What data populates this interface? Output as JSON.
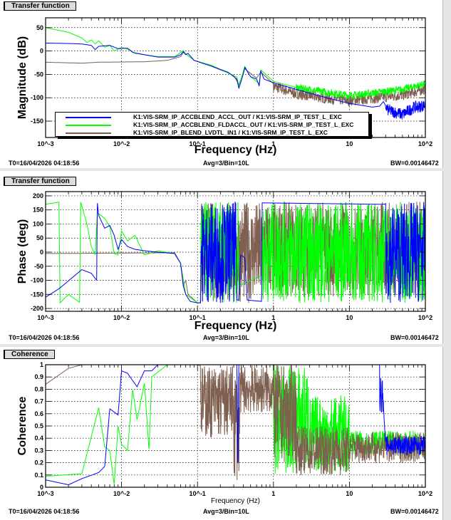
{
  "footer": {
    "t0": "T0=16/04/2026 04:18:56",
    "avg": "Avg=3/Bin=10L",
    "bw": "BW=0.00146472"
  },
  "legend": [
    {
      "label": "K1:VIS-SRM_IP_ACCBLEND_ACCL_OUT / K1:VIS-SRM_IP_TEST_L_EXC",
      "color": "#0000ff"
    },
    {
      "label": "K1:VIS-SRM_IP_ACCBLEND_FLDACCL_OUT / K1:VIS-SRM_IP_TEST_L_EXC",
      "color": "#00ff00"
    },
    {
      "label": "K1:VIS-SRM_IP_BLEND_LVDTL_IN1 / K1:VIS-SRM_IP_TEST_L_EXC",
      "color": "#7f5f4f"
    }
  ],
  "chart_data": [
    {
      "type": "line",
      "tab": "Transfer function",
      "title": "Transfer function",
      "xlabel": "Frequency (Hz)",
      "ylabel": "Magnitude (dB)",
      "xscale": "log",
      "xlim": [
        0.001,
        100
      ],
      "ylim": [
        -185,
        71
      ],
      "x_ticks": [
        "10^-3",
        "10^-2",
        "10^-1",
        "1",
        "10",
        "10^2"
      ],
      "y_ticks": [
        50,
        0,
        -50,
        -100,
        -150
      ],
      "grid": true,
      "legend": "bottom",
      "series": [
        {
          "name": "K1:VIS-SRM_IP_BLEND_LVDTL_IN1 / K1:VIS-SRM_IP_TEST_L_EXC",
          "color": "#7f5f4f",
          "points": [
            [
              0.001,
              -24
            ],
            [
              0.003,
              -26
            ],
            [
              0.005,
              -24
            ],
            [
              0.02,
              -23
            ],
            [
              0.04,
              -20
            ],
            [
              0.06,
              -12
            ],
            [
              0.065,
              -3
            ],
            [
              0.07,
              -6
            ],
            [
              0.09,
              -20
            ],
            [
              0.15,
              -32
            ],
            [
              0.3,
              -52
            ],
            [
              0.35,
              -72
            ],
            [
              0.42,
              -38
            ],
            [
              0.6,
              -58
            ],
            [
              0.68,
              -45
            ],
            [
              1,
              -70
            ],
            [
              2,
              -85
            ],
            [
              5,
              -95
            ],
            [
              10,
              -100
            ],
            [
              20,
              -95
            ],
            [
              50,
              -88
            ],
            [
              100,
              -75
            ]
          ],
          "bands": [
            [
              1,
              100,
              -18,
              6
            ]
          ]
        },
        {
          "name": "K1:VIS-SRM_IP_ACCBLEND_FLDACCL_OUT / K1:VIS-SRM_IP_TEST_L_EXC",
          "color": "#00ff00",
          "points": [
            [
              0.001,
              50
            ],
            [
              0.002,
              40
            ],
            [
              0.003,
              28
            ],
            [
              0.0035,
              18
            ],
            [
              0.004,
              24
            ],
            [
              0.0045,
              15
            ],
            [
              0.005,
              22
            ],
            [
              0.006,
              8
            ],
            [
              0.007,
              12
            ],
            [
              0.008,
              0
            ],
            [
              0.01,
              8
            ],
            [
              0.013,
              2
            ],
            [
              0.015,
              -5
            ],
            [
              0.02,
              -8
            ],
            [
              0.03,
              -12
            ],
            [
              0.05,
              -12
            ],
            [
              0.065,
              1
            ],
            [
              0.07,
              -6
            ],
            [
              0.09,
              -20
            ],
            [
              0.15,
              -30
            ],
            [
              0.33,
              -56
            ],
            [
              0.35,
              -75
            ],
            [
              0.42,
              -33
            ],
            [
              0.5,
              -55
            ],
            [
              0.65,
              -70
            ],
            [
              0.68,
              -40
            ],
            [
              1,
              -65
            ],
            [
              2,
              -78
            ],
            [
              5,
              -88
            ],
            [
              10,
              -95
            ],
            [
              20,
              -90
            ],
            [
              50,
              -82
            ],
            [
              100,
              -70
            ]
          ],
          "bands": [
            [
              2,
              100,
              -8,
              8
            ]
          ]
        },
        {
          "name": "K1:VIS-SRM_IP_ACCBLEND_ACCL_OUT / K1:VIS-SRM_IP_TEST_L_EXC",
          "color": "#0000ff",
          "points": [
            [
              0.001,
              17
            ],
            [
              0.002,
              16
            ],
            [
              0.003,
              15
            ],
            [
              0.004,
              12
            ],
            [
              0.0045,
              3
            ],
            [
              0.005,
              10
            ],
            [
              0.007,
              12
            ],
            [
              0.009,
              5
            ],
            [
              0.012,
              6
            ],
            [
              0.014,
              -3
            ],
            [
              0.02,
              -8
            ],
            [
              0.03,
              -13
            ],
            [
              0.05,
              -13
            ],
            [
              0.06,
              -8
            ],
            [
              0.065,
              -1
            ],
            [
              0.07,
              -8
            ],
            [
              0.075,
              -5
            ],
            [
              0.09,
              -20
            ],
            [
              0.15,
              -32
            ],
            [
              0.25,
              -45
            ],
            [
              0.33,
              -60
            ],
            [
              0.35,
              -80
            ],
            [
              0.4,
              -50
            ],
            [
              0.42,
              -35
            ],
            [
              0.5,
              -55
            ],
            [
              0.6,
              -60
            ],
            [
              0.65,
              -75
            ],
            [
              0.68,
              -42
            ],
            [
              0.75,
              -60
            ],
            [
              1,
              -68
            ],
            [
              2,
              -82
            ],
            [
              5,
              -100
            ],
            [
              10,
              -112
            ],
            [
              20,
              -120
            ],
            [
              25,
              -118
            ],
            [
              28,
              -108
            ],
            [
              32,
              -125
            ],
            [
              50,
              -135
            ],
            [
              70,
              -120
            ],
            [
              100,
              -115
            ]
          ],
          "bands": [
            [
              30,
              100,
              -14,
              12
            ]
          ]
        }
      ]
    },
    {
      "type": "line",
      "tab": "Transfer function",
      "title": "Transfer function",
      "xlabel": "Frequency (Hz)",
      "ylabel": "Phase (deg)",
      "xscale": "log",
      "xlim": [
        0.001,
        100
      ],
      "ylim": [
        -210,
        215
      ],
      "x_ticks": [
        "10^-3",
        "10^-2",
        "10^-1",
        "1",
        "10",
        "10^2"
      ],
      "y_ticks": [
        200,
        150,
        100,
        50,
        0,
        -50,
        -100,
        -150,
        -200
      ],
      "grid": true,
      "series": [
        {
          "name": "LVDTL",
          "color": "#7f5f4f",
          "points": [
            [
              0.001,
              -5
            ],
            [
              0.05,
              -2
            ],
            [
              0.06,
              -40
            ],
            [
              0.065,
              -120
            ],
            [
              0.07,
              -100
            ],
            [
              0.075,
              -150
            ],
            [
              0.1,
              -180
            ],
            [
              0.11,
              -180
            ],
            [
              0.35,
              -180
            ],
            [
              0.7,
              -178
            ],
            [
              100,
              175
            ]
          ],
          "bands": [
            [
              0.11,
              0.35,
              -180,
              180
            ],
            [
              0.35,
              0.7,
              -180,
              180
            ],
            [
              0.7,
              100,
              -160,
              180
            ]
          ]
        },
        {
          "name": "FLDACCL",
          "color": "#00ff00",
          "points": [
            [
              0.001,
              170
            ],
            [
              0.0015,
              178
            ],
            [
              0.00155,
              -180
            ],
            [
              0.002,
              -150
            ],
            [
              0.0028,
              -178
            ],
            [
              0.0029,
              178
            ],
            [
              0.0035,
              100
            ],
            [
              0.004,
              20
            ],
            [
              0.0045,
              -10
            ],
            [
              0.0048,
              140
            ],
            [
              0.006,
              120
            ],
            [
              0.007,
              90
            ],
            [
              0.008,
              -5
            ],
            [
              0.009,
              -10
            ],
            [
              0.01,
              75
            ],
            [
              0.012,
              40
            ],
            [
              0.015,
              60
            ],
            [
              0.02,
              -10
            ],
            [
              0.03,
              5
            ],
            [
              0.05,
              -5
            ],
            [
              0.06,
              -40
            ],
            [
              0.07,
              -150
            ],
            [
              0.1,
              -180
            ],
            [
              0.11,
              -180
            ],
            [
              100,
              175
            ]
          ],
          "bands": [
            [
              0.11,
              0.35,
              -180,
              180
            ],
            [
              0.7,
              100,
              -180,
              180
            ]
          ]
        },
        {
          "name": "ACCL",
          "color": "#0000ff",
          "points": [
            [
              0.001,
              -160
            ],
            [
              0.0015,
              -130
            ],
            [
              0.003,
              -62
            ],
            [
              0.004,
              -75
            ],
            [
              0.0047,
              -100
            ],
            [
              0.0048,
              175
            ],
            [
              0.005,
              130
            ],
            [
              0.006,
              85
            ],
            [
              0.007,
              95
            ],
            [
              0.008,
              60
            ],
            [
              0.009,
              10
            ],
            [
              0.01,
              45
            ],
            [
              0.012,
              20
            ],
            [
              0.015,
              10
            ],
            [
              0.02,
              5
            ],
            [
              0.03,
              0
            ],
            [
              0.05,
              -5
            ],
            [
              0.06,
              -40
            ],
            [
              0.065,
              -120
            ],
            [
              0.07,
              -150
            ],
            [
              0.08,
              -175
            ],
            [
              0.1,
              -180
            ],
            [
              0.11,
              -180
            ],
            [
              0.35,
              -170
            ],
            [
              0.37,
              -10
            ],
            [
              0.42,
              -20
            ],
            [
              0.45,
              -170
            ],
            [
              0.7,
              -175
            ],
            [
              0.71,
              175
            ],
            [
              25,
              170
            ],
            [
              100,
              175
            ]
          ],
          "bands": [
            [
              0.11,
              0.33,
              -180,
              180
            ],
            [
              30,
              100,
              -180,
              180
            ]
          ]
        }
      ]
    },
    {
      "type": "line",
      "tab": "Coherence",
      "title": "Coherence",
      "xlabel": "Frequency (Hz)",
      "ylabel": "Coherence",
      "xscale": "log",
      "xlim": [
        0.001,
        100
      ],
      "ylim": [
        0,
        1
      ],
      "x_ticks": [
        "10^-3",
        "10^-2",
        "10^-1",
        "1",
        "10",
        "10^2"
      ],
      "y_ticks": [
        1,
        0.9,
        0.8,
        0.7,
        0.6,
        0.5,
        0.4,
        0.3,
        0.2,
        0.1,
        0
      ],
      "grid": true,
      "series": [
        {
          "name": "FLDACCL",
          "color": "#00ff00",
          "points": [
            [
              0.001,
              0.09
            ],
            [
              0.003,
              0.11
            ],
            [
              0.005,
              0.65
            ],
            [
              0.006,
              0.33
            ],
            [
              0.007,
              0.3
            ],
            [
              0.008,
              0.02
            ],
            [
              0.009,
              0.5
            ],
            [
              0.01,
              0.35
            ],
            [
              0.012,
              0.3
            ],
            [
              0.014,
              0.8
            ],
            [
              0.016,
              0.55
            ],
            [
              0.02,
              0.85
            ],
            [
              0.023,
              0.3
            ],
            [
              0.025,
              0.9
            ],
            [
              0.04,
              1
            ],
            [
              1,
              1
            ],
            [
              100,
              0.3
            ]
          ],
          "bands": [
            [
              1,
              3,
              0.1,
              1
            ],
            [
              3,
              10,
              0.12,
              0.75
            ],
            [
              10,
              100,
              0.27,
              0.46
            ]
          ]
        },
        {
          "name": "LVDTL",
          "color": "#7f5f4f",
          "points": [
            [
              0.001,
              0.84
            ],
            [
              0.002,
              0.97
            ],
            [
              0.003,
              1
            ],
            [
              0.1,
              1
            ],
            [
              100,
              0.3
            ]
          ],
          "bands": [
            [
              0.11,
              0.3,
              0.4,
              1
            ],
            [
              0.3,
              0.36,
              0.05,
              1
            ],
            [
              0.36,
              1,
              0.6,
              1
            ],
            [
              1,
              2,
              0.2,
              1
            ],
            [
              2,
              10,
              0.1,
              0.5
            ],
            [
              10,
              100,
              0.2,
              0.45
            ]
          ]
        },
        {
          "name": "ACCL",
          "color": "#0000ff",
          "points": [
            [
              0.001,
              0.06
            ],
            [
              0.002,
              0.02
            ],
            [
              0.003,
              0.07
            ],
            [
              0.005,
              0.12
            ],
            [
              0.006,
              0.17
            ],
            [
              0.007,
              0.64
            ],
            [
              0.009,
              0.59
            ],
            [
              0.01,
              0.95
            ],
            [
              0.012,
              0.93
            ],
            [
              0.016,
              0.82
            ],
            [
              0.02,
              0.95
            ],
            [
              0.025,
              0.95
            ],
            [
              0.03,
              1
            ],
            [
              0.33,
              1
            ],
            [
              0.34,
              0.1
            ],
            [
              0.35,
              1
            ],
            [
              25,
              1
            ],
            [
              27,
              0.85
            ],
            [
              29,
              0.5
            ],
            [
              30,
              0.35
            ],
            [
              100,
              0.33
            ]
          ],
          "bands": [
            [
              25,
              28,
              0.6,
              0.9
            ],
            [
              30,
              100,
              0.26,
              0.42
            ]
          ]
        }
      ]
    }
  ]
}
